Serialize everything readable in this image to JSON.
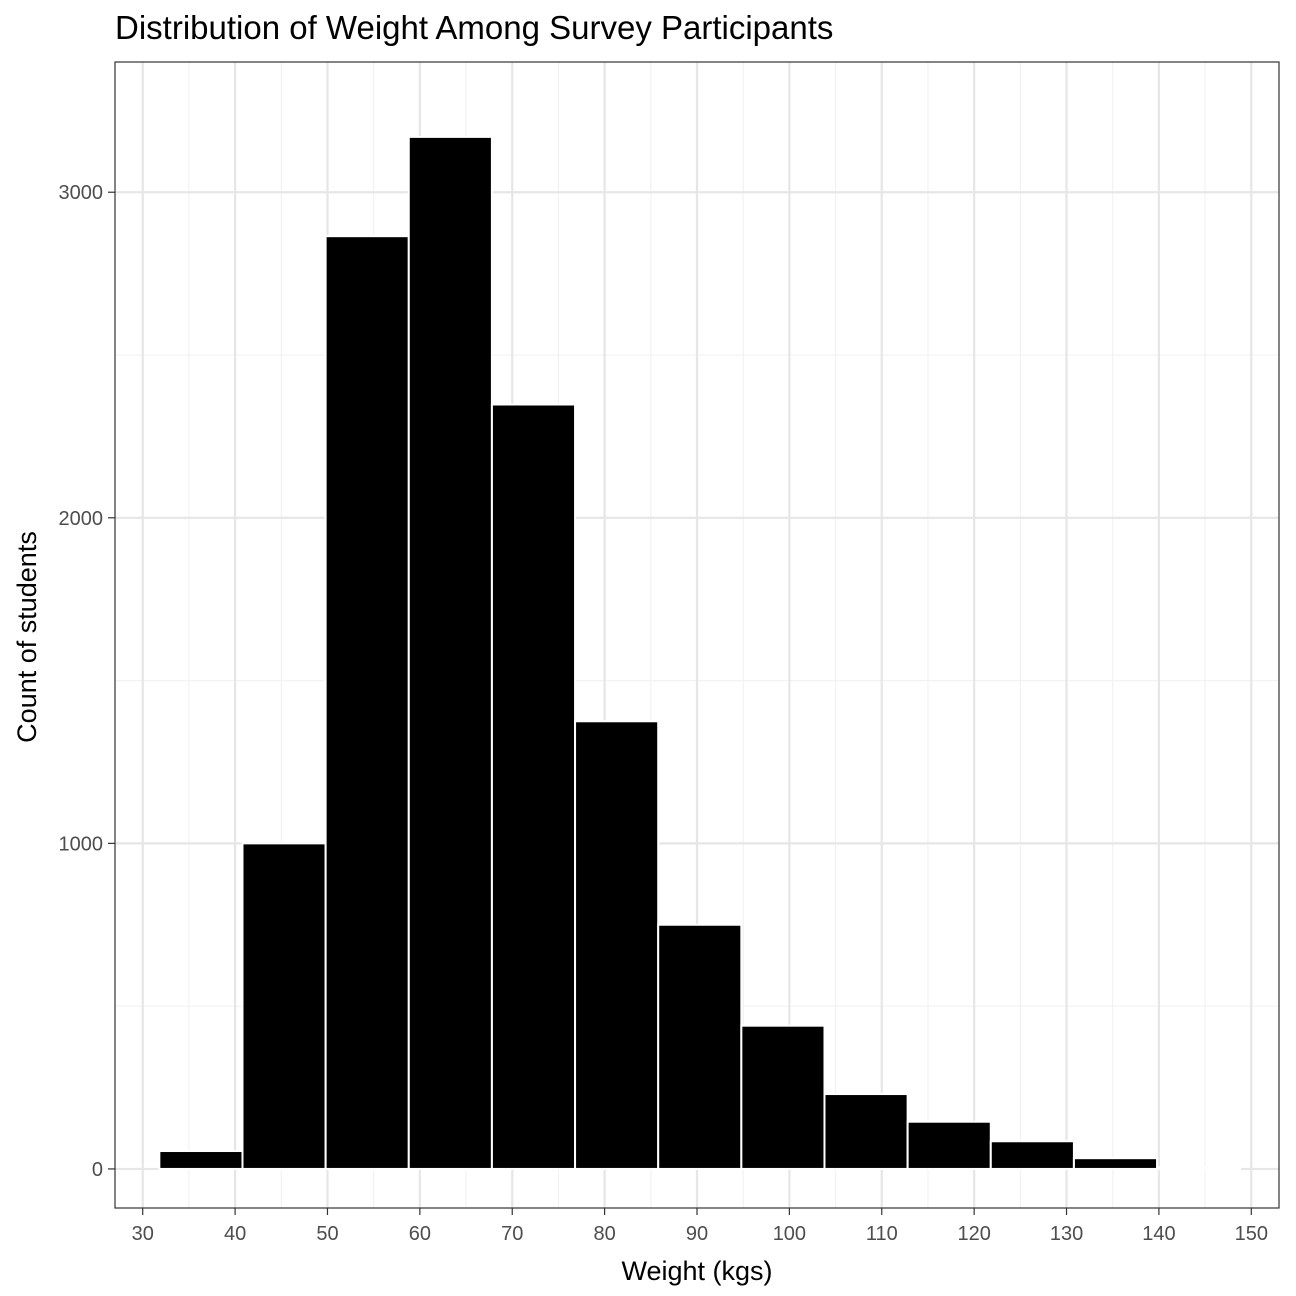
{
  "chart_data": {
    "type": "bar",
    "title": "Distribution of Weight Among Survey Participants",
    "xlabel": "Weight (kgs)",
    "ylabel": "Count of students",
    "xlim": [
      27,
      153
    ],
    "ylim": [
      -120,
      3400
    ],
    "x_ticks": [
      "30",
      "40",
      "50",
      "60",
      "70",
      "80",
      "90",
      "100",
      "110",
      "120",
      "130",
      "140",
      "150"
    ],
    "y_ticks": [
      "0",
      "1000",
      "2000",
      "3000"
    ],
    "bins": [
      {
        "x0": 31.8,
        "x1": 40.8,
        "value": 55
      },
      {
        "x0": 40.8,
        "x1": 49.8,
        "value": 1000
      },
      {
        "x0": 49.8,
        "x1": 58.8,
        "value": 2865
      },
      {
        "x0": 58.8,
        "x1": 67.8,
        "value": 3170
      },
      {
        "x0": 67.8,
        "x1": 76.8,
        "value": 2348
      },
      {
        "x0": 76.8,
        "x1": 85.8,
        "value": 1375
      },
      {
        "x0": 85.8,
        "x1": 94.8,
        "value": 750
      },
      {
        "x0": 94.8,
        "x1": 103.8,
        "value": 440
      },
      {
        "x0": 103.8,
        "x1": 112.8,
        "value": 230
      },
      {
        "x0": 112.8,
        "x1": 121.8,
        "value": 145
      },
      {
        "x0": 121.8,
        "x1": 130.8,
        "value": 85
      },
      {
        "x0": 130.8,
        "x1": 139.8,
        "value": 33
      },
      {
        "x0": 139.8,
        "x1": 148.8,
        "value": 5
      }
    ],
    "bar_color": "#000000",
    "bar_outline": "#ffffff",
    "grid": true,
    "background": "#ffffff"
  }
}
